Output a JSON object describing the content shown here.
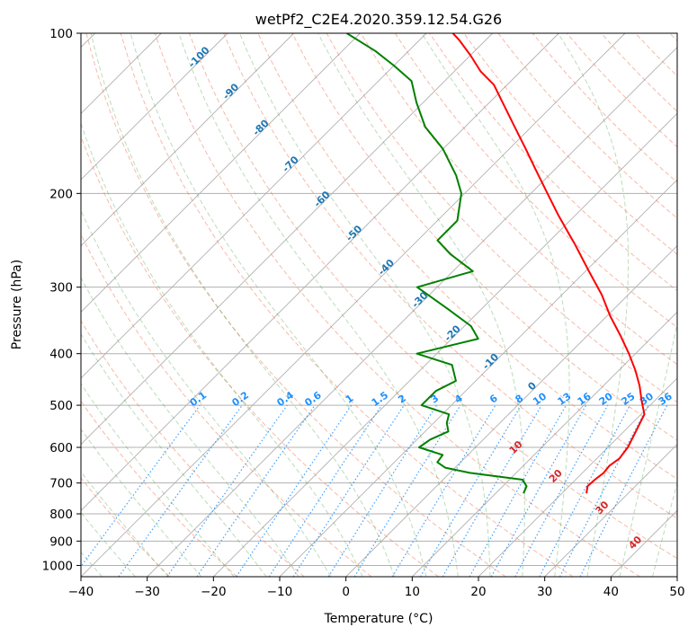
{
  "chart_data": {
    "type": "line",
    "subtype": "skew-T log-p diagram",
    "title": "wetPf2_C2E4.2020.359.12.54.G26",
    "xlabel": "Temperature (°C)",
    "ylabel": "Pressure (hPa)",
    "xlim": [
      -40,
      50
    ],
    "ylim": [
      1050,
      100
    ],
    "y_scale": "log",
    "grid": true,
    "x_ticks": [
      -40,
      -30,
      -20,
      -10,
      0,
      10,
      20,
      30,
      40,
      50
    ],
    "x_tick_labels": [
      "−40",
      "−30",
      "−20",
      "−10",
      "0",
      "10",
      "20",
      "30",
      "40",
      "50"
    ],
    "y_ticks": [
      100,
      200,
      300,
      400,
      500,
      600,
      700,
      800,
      900,
      1000
    ],
    "y_tick_labels": [
      "100",
      "200",
      "300",
      "400",
      "500",
      "600",
      "700",
      "800",
      "900",
      "1000"
    ],
    "isotherm_labels": [
      {
        "value": -100,
        "text": "-100"
      },
      {
        "value": -90,
        "text": "-90"
      },
      {
        "value": -80,
        "text": "-80"
      },
      {
        "value": -70,
        "text": "-70"
      },
      {
        "value": -60,
        "text": "-60"
      },
      {
        "value": -50,
        "text": "-50"
      },
      {
        "value": -40,
        "text": "-40"
      },
      {
        "value": -30,
        "text": "-30"
      },
      {
        "value": -20,
        "text": "-20"
      },
      {
        "value": -10,
        "text": "-10"
      },
      {
        "value": 0,
        "text": "0"
      }
    ],
    "mixing_ratio_labels": [
      "0.1",
      "0.2",
      "0.4",
      "0.6",
      "1",
      "1.5",
      "2",
      "3",
      "4",
      "6",
      "8",
      "10",
      "13",
      "16",
      "20",
      "25",
      "30",
      "36"
    ],
    "moist_adiabat_labels": [
      "10",
      "20",
      "30",
      "40"
    ],
    "series": [
      {
        "name": "",
        "role": "temperature",
        "color": "#ff0000",
        "points": [
          [
            732,
            23.7
          ],
          [
            710,
            22.8
          ],
          [
            690,
            22.9
          ],
          [
            670,
            23.2
          ],
          [
            650,
            23.0
          ],
          [
            630,
            23.4
          ],
          [
            600,
            23.0
          ],
          [
            560,
            21.8
          ],
          [
            520,
            20.5
          ],
          [
            490,
            18.0
          ],
          [
            460,
            15.5
          ],
          [
            430,
            12.5
          ],
          [
            400,
            9.0
          ],
          [
            370,
            5.0
          ],
          [
            340,
            0.5
          ],
          [
            310,
            -4.0
          ],
          [
            280,
            -9.5
          ],
          [
            250,
            -15.5
          ],
          [
            220,
            -22.5
          ],
          [
            200,
            -27.5
          ],
          [
            180,
            -33.0
          ],
          [
            165,
            -37.5
          ],
          [
            150,
            -42.5
          ],
          [
            135,
            -48.0
          ],
          [
            125,
            -52.0
          ],
          [
            118,
            -56.0
          ],
          [
            110,
            -60.0
          ],
          [
            103,
            -64.0
          ],
          [
            100,
            -66.0
          ]
        ]
      },
      {
        "name": "",
        "role": "dewpoint",
        "color": "#008000",
        "points": [
          [
            732,
            14.2
          ],
          [
            710,
            13.6
          ],
          [
            690,
            12.0
          ],
          [
            670,
            3.0
          ],
          [
            655,
            -1.5
          ],
          [
            640,
            -3.5
          ],
          [
            620,
            -3.8
          ],
          [
            600,
            -8.5
          ],
          [
            580,
            -8.0
          ],
          [
            560,
            -6.5
          ],
          [
            540,
            -8.0
          ],
          [
            520,
            -9.0
          ],
          [
            500,
            -14.5
          ],
          [
            470,
            -14.5
          ],
          [
            450,
            -13.0
          ],
          [
            420,
            -16.0
          ],
          [
            400,
            -23.0
          ],
          [
            375,
            -16.0
          ],
          [
            355,
            -19.0
          ],
          [
            330,
            -25.0
          ],
          [
            300,
            -33.0
          ],
          [
            280,
            -27.0
          ],
          [
            260,
            -33.0
          ],
          [
            245,
            -37.0
          ],
          [
            225,
            -37.0
          ],
          [
            200,
            -40.5
          ],
          [
            185,
            -44.0
          ],
          [
            165,
            -50.0
          ],
          [
            150,
            -56.0
          ],
          [
            135,
            -61.0
          ],
          [
            123,
            -65.0
          ],
          [
            115,
            -70.0
          ],
          [
            108,
            -75.0
          ],
          [
            100,
            -82.0
          ]
        ]
      }
    ]
  }
}
